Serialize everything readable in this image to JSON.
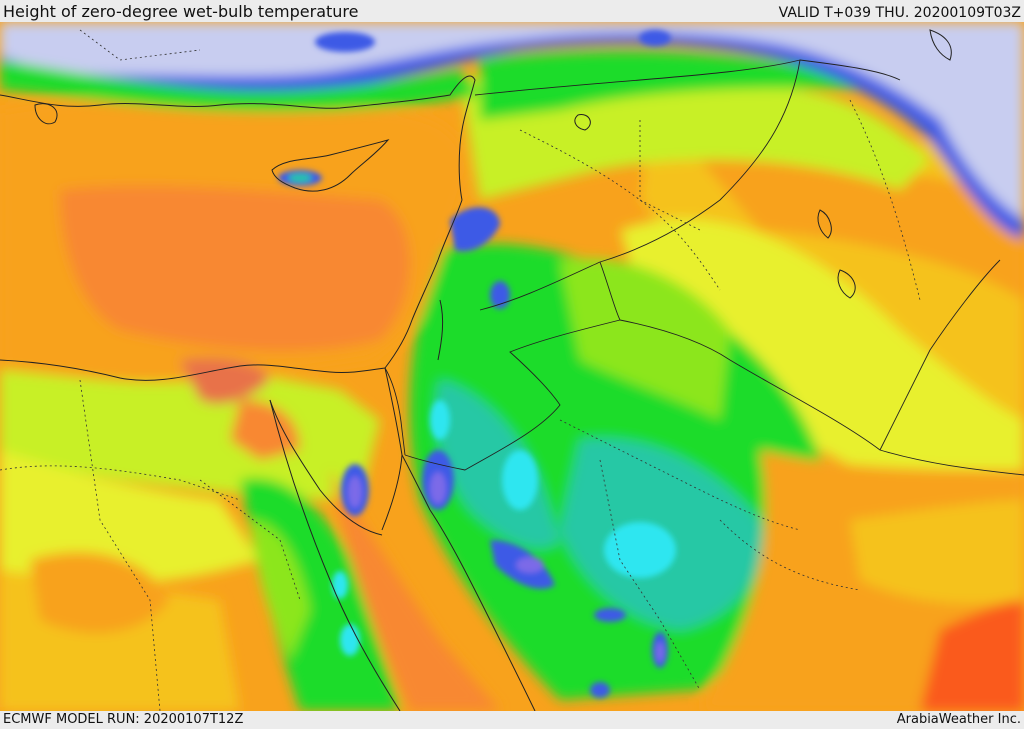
{
  "header": {
    "title": "Height of zero-degree wet-bulb temperature",
    "valid": "VALID T+039 THU. 20200109T03Z"
  },
  "footer": {
    "model_run": "ECMWF MODEL RUN: 20200107T12Z",
    "credit": "ArabiaWeather Inc."
  },
  "map": {
    "field": "zero-degree wet-bulb height",
    "colors": {
      "lowest": "#c8cdf0",
      "blue": "#3c5ae6",
      "violet": "#7b6be8",
      "cyan": "#2ee6f0",
      "teal": "#25c8a5",
      "green": "#1fdc2a",
      "light_green": "#8ce61c",
      "yellow_green": "#c8f028",
      "yellow": "#e8f02d",
      "orange_yellow": "#f5c21e",
      "orange": "#f8a21c",
      "dark_orange": "#f88830",
      "red_orange": "#fa5a1e",
      "boundaries": "#222222"
    }
  }
}
